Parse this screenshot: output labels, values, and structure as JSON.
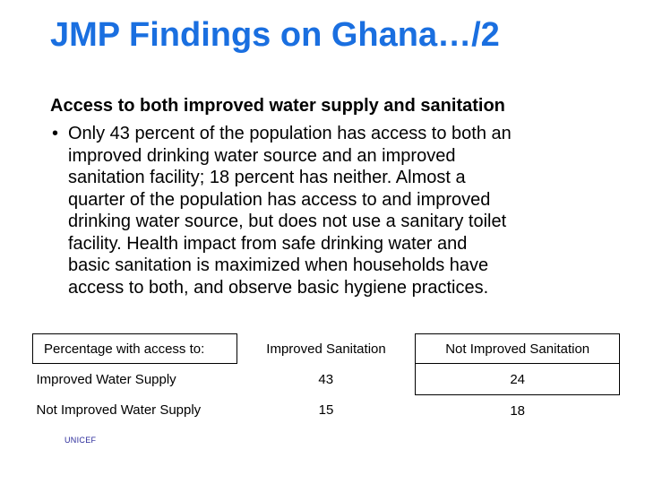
{
  "slide": {
    "title": "JMP Findings on Ghana…/2",
    "subheading": "Access to both improved water supply and sanitation",
    "bullet_text": "Only 43 percent of the population has access to both an\nimproved drinking water source and an improved\nsanitation facility; 18 percent has neither. Almost a\nquarter of the population has access to and improved\ndrinking water source, but does not use a sanitary toilet\nfacility. Health impact from safe drinking water and\nbasic sanitation is maximized when households have\naccess to both, and observe basic hygiene practices.",
    "footer": "UNICEF"
  },
  "table": {
    "headers": [
      "Percentage with access to:",
      "Improved Sanitation",
      "Not Improved Sanitation"
    ],
    "rows": [
      {
        "label": "Improved Water Supply",
        "improved_sanitation": "43",
        "not_improved_sanitation": "24"
      },
      {
        "label": "Not Improved Water Supply",
        "improved_sanitation": "15",
        "not_improved_sanitation": "18"
      }
    ]
  },
  "colors": {
    "title": "#1a6fe0",
    "footer": "#2a2a9a"
  }
}
